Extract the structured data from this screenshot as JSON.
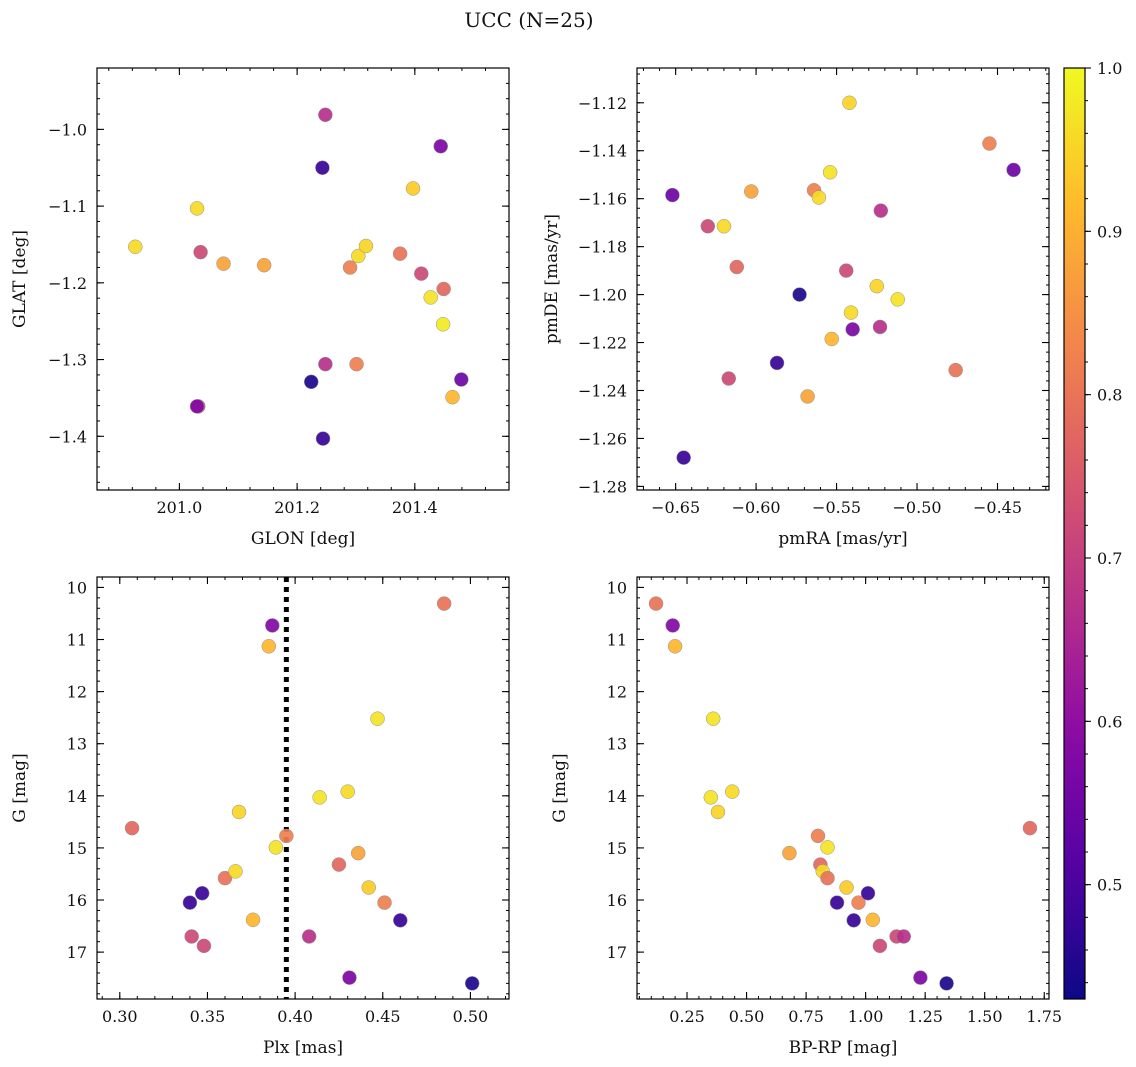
{
  "figure": {
    "suptitle": "UCC (N=25)"
  },
  "colorbar": {
    "range": [
      0.43,
      1.0
    ],
    "ticks": [
      0.5,
      0.6,
      0.7,
      0.8,
      0.9,
      1.0
    ],
    "tick_labels": [
      "0.5",
      "0.6",
      "0.7",
      "0.8",
      "0.9",
      "1.0"
    ],
    "colormap": "plasma"
  },
  "chart_data": [
    {
      "type": "scatter",
      "title": "",
      "xlabel": "GLON [deg]",
      "ylabel": "GLAT [deg]",
      "xlim": [
        200.86,
        201.56
      ],
      "ylim": [
        -1.47,
        -0.92
      ],
      "y_inverted": false,
      "xticks": [
        201.0,
        201.2,
        201.4
      ],
      "xtick_labels": [
        "201.0",
        "201.2",
        "201.4"
      ],
      "yticks": [
        -1.4,
        -1.3,
        -1.2,
        -1.1,
        -1.0
      ],
      "ytick_labels": [
        "−1.4",
        "−1.3",
        "−1.2",
        "−1.1",
        "−1.0"
      ],
      "points": [
        {
          "x": 200.925,
          "y": -1.153,
          "c": 0.96
        },
        {
          "x": 201.03,
          "y": -1.103,
          "c": 0.96
        },
        {
          "x": 201.036,
          "y": -1.16,
          "c": 0.72
        },
        {
          "x": 201.075,
          "y": -1.175,
          "c": 0.88
        },
        {
          "x": 201.144,
          "y": -1.177,
          "c": 0.88
        },
        {
          "x": 201.032,
          "y": -1.361,
          "c": 0.72
        },
        {
          "x": 201.03,
          "y": -1.361,
          "c": 0.58
        },
        {
          "x": 201.248,
          "y": -0.981,
          "c": 0.67
        },
        {
          "x": 201.243,
          "y": -1.05,
          "c": 0.48
        },
        {
          "x": 201.244,
          "y": -1.403,
          "c": 0.48
        },
        {
          "x": 201.224,
          "y": -1.329,
          "c": 0.45
        },
        {
          "x": 201.248,
          "y": -1.306,
          "c": 0.67
        },
        {
          "x": 201.29,
          "y": -1.18,
          "c": 0.82
        },
        {
          "x": 201.301,
          "y": -1.306,
          "c": 0.82
        },
        {
          "x": 201.304,
          "y": -1.165,
          "c": 0.96
        },
        {
          "x": 201.317,
          "y": -1.152,
          "c": 0.95
        },
        {
          "x": 201.375,
          "y": -1.162,
          "c": 0.8
        },
        {
          "x": 201.397,
          "y": -1.077,
          "c": 0.94
        },
        {
          "x": 201.411,
          "y": -1.188,
          "c": 0.72
        },
        {
          "x": 201.427,
          "y": -1.219,
          "c": 0.97
        },
        {
          "x": 201.444,
          "y": -1.022,
          "c": 0.57
        },
        {
          "x": 201.448,
          "y": -1.254,
          "c": 0.98
        },
        {
          "x": 201.449,
          "y": -1.208,
          "c": 0.78
        },
        {
          "x": 201.464,
          "y": -1.349,
          "c": 0.91
        },
        {
          "x": 201.479,
          "y": -1.326,
          "c": 0.55
        }
      ]
    },
    {
      "type": "scatter",
      "title": "",
      "xlabel": "pmRA [mas/yr]",
      "ylabel": "pmDE [mas/yr]",
      "xlim": [
        -0.674,
        -0.418
      ],
      "ylim": [
        -1.2815,
        -1.1055
      ],
      "y_inverted": false,
      "xticks": [
        -0.65,
        -0.6,
        -0.55,
        -0.5,
        -0.45
      ],
      "xtick_labels": [
        "−0.65",
        "−0.60",
        "−0.55",
        "−0.50",
        "−0.45"
      ],
      "yticks": [
        -1.28,
        -1.26,
        -1.24,
        -1.22,
        -1.2,
        -1.18,
        -1.16,
        -1.14,
        -1.12
      ],
      "ytick_labels": [
        "−1.28",
        "−1.26",
        "−1.24",
        "−1.22",
        "−1.20",
        "−1.18",
        "−1.16",
        "−1.14",
        "−1.12"
      ],
      "points": [
        {
          "x": -0.652,
          "y": -1.1585,
          "c": 0.55
        },
        {
          "x": -0.645,
          "y": -1.268,
          "c": 0.48
        },
        {
          "x": -0.63,
          "y": -1.1715,
          "c": 0.72
        },
        {
          "x": -0.62,
          "y": -1.1715,
          "c": 0.96
        },
        {
          "x": -0.617,
          "y": -1.235,
          "c": 0.72
        },
        {
          "x": -0.612,
          "y": -1.1885,
          "c": 0.78
        },
        {
          "x": -0.603,
          "y": -1.157,
          "c": 0.88
        },
        {
          "x": -0.587,
          "y": -1.2285,
          "c": 0.48
        },
        {
          "x": -0.573,
          "y": -1.2,
          "c": 0.45
        },
        {
          "x": -0.568,
          "y": -1.2425,
          "c": 0.88
        },
        {
          "x": -0.564,
          "y": -1.1565,
          "c": 0.82
        },
        {
          "x": -0.561,
          "y": -1.1595,
          "c": 0.96
        },
        {
          "x": -0.554,
          "y": -1.149,
          "c": 0.97
        },
        {
          "x": -0.553,
          "y": -1.2185,
          "c": 0.91
        },
        {
          "x": -0.544,
          "y": -1.19,
          "c": 0.72
        },
        {
          "x": -0.542,
          "y": -1.12,
          "c": 0.95
        },
        {
          "x": -0.541,
          "y": -1.2075,
          "c": 0.96
        },
        {
          "x": -0.54,
          "y": -1.2145,
          "c": 0.57
        },
        {
          "x": -0.525,
          "y": -1.1965,
          "c": 0.95
        },
        {
          "x": -0.523,
          "y": -1.2135,
          "c": 0.67
        },
        {
          "x": -0.5225,
          "y": -1.165,
          "c": 0.67
        },
        {
          "x": -0.512,
          "y": -1.202,
          "c": 0.97
        },
        {
          "x": -0.476,
          "y": -1.2315,
          "c": 0.8
        },
        {
          "x": -0.455,
          "y": -1.137,
          "c": 0.82
        },
        {
          "x": -0.44,
          "y": -1.148,
          "c": 0.55
        }
      ]
    },
    {
      "type": "scatter",
      "title": "",
      "xlabel": "Plx [mas]",
      "ylabel": "G [mag]",
      "xlim": [
        0.287,
        0.522
      ],
      "ylim": [
        9.8,
        17.9
      ],
      "y_inverted": true,
      "vline": 0.395,
      "xticks": [
        0.3,
        0.35,
        0.4,
        0.45,
        0.5
      ],
      "xtick_labels": [
        "0.30",
        "0.35",
        "0.40",
        "0.45",
        "0.50"
      ],
      "yticks": [
        10,
        11,
        12,
        13,
        14,
        15,
        16,
        17
      ],
      "ytick_labels": [
        "10",
        "11",
        "12",
        "13",
        "14",
        "15",
        "16",
        "17"
      ],
      "points": [
        {
          "x": 0.307,
          "y": 14.62,
          "c": 0.78
        },
        {
          "x": 0.34,
          "y": 16.05,
          "c": 0.48
        },
        {
          "x": 0.341,
          "y": 16.7,
          "c": 0.72
        },
        {
          "x": 0.347,
          "y": 15.87,
          "c": 0.48
        },
        {
          "x": 0.348,
          "y": 16.88,
          "c": 0.72
        },
        {
          "x": 0.36,
          "y": 15.58,
          "c": 0.8
        },
        {
          "x": 0.366,
          "y": 15.45,
          "c": 0.96
        },
        {
          "x": 0.368,
          "y": 14.31,
          "c": 0.95
        },
        {
          "x": 0.376,
          "y": 16.38,
          "c": 0.91
        },
        {
          "x": 0.385,
          "y": 11.13,
          "c": 0.91
        },
        {
          "x": 0.387,
          "y": 10.73,
          "c": 0.58
        },
        {
          "x": 0.389,
          "y": 14.99,
          "c": 0.97
        },
        {
          "x": 0.395,
          "y": 14.77,
          "c": 0.82
        },
        {
          "x": 0.408,
          "y": 16.7,
          "c": 0.67
        },
        {
          "x": 0.414,
          "y": 14.03,
          "c": 0.97
        },
        {
          "x": 0.425,
          "y": 15.32,
          "c": 0.78
        },
        {
          "x": 0.43,
          "y": 13.92,
          "c": 0.96
        },
        {
          "x": 0.431,
          "y": 17.49,
          "c": 0.57
        },
        {
          "x": 0.436,
          "y": 15.1,
          "c": 0.88
        },
        {
          "x": 0.442,
          "y": 15.76,
          "c": 0.94
        },
        {
          "x": 0.447,
          "y": 12.52,
          "c": 0.97
        },
        {
          "x": 0.451,
          "y": 16.05,
          "c": 0.82
        },
        {
          "x": 0.46,
          "y": 16.39,
          "c": 0.48
        },
        {
          "x": 0.485,
          "y": 10.31,
          "c": 0.8
        },
        {
          "x": 0.501,
          "y": 17.6,
          "c": 0.45
        }
      ]
    },
    {
      "type": "scatter",
      "title": "",
      "xlabel": "BP-RP [mag]",
      "ylabel": "G [mag]",
      "xlim": [
        0.04,
        1.77
      ],
      "ylim": [
        9.8,
        17.9
      ],
      "y_inverted": true,
      "xticks": [
        0.25,
        0.5,
        0.75,
        1.0,
        1.25,
        1.5,
        1.75
      ],
      "xtick_labels": [
        "0.25",
        "0.50",
        "0.75",
        "1.00",
        "1.25",
        "1.50",
        "1.75"
      ],
      "yticks": [
        10,
        11,
        12,
        13,
        14,
        15,
        16,
        17
      ],
      "ytick_labels": [
        "10",
        "11",
        "12",
        "13",
        "14",
        "15",
        "16",
        "17"
      ],
      "points": [
        {
          "x": 0.12,
          "y": 10.31,
          "c": 0.8
        },
        {
          "x": 0.19,
          "y": 10.73,
          "c": 0.58
        },
        {
          "x": 0.2,
          "y": 11.13,
          "c": 0.91
        },
        {
          "x": 0.36,
          "y": 12.52,
          "c": 0.97
        },
        {
          "x": 0.35,
          "y": 14.03,
          "c": 0.97
        },
        {
          "x": 0.38,
          "y": 14.31,
          "c": 0.95
        },
        {
          "x": 0.44,
          "y": 13.92,
          "c": 0.96
        },
        {
          "x": 0.68,
          "y": 15.1,
          "c": 0.88
        },
        {
          "x": 0.8,
          "y": 14.77,
          "c": 0.82
        },
        {
          "x": 0.81,
          "y": 15.32,
          "c": 0.78
        },
        {
          "x": 0.82,
          "y": 15.45,
          "c": 0.96
        },
        {
          "x": 0.84,
          "y": 14.99,
          "c": 0.97
        },
        {
          "x": 0.84,
          "y": 15.58,
          "c": 0.8
        },
        {
          "x": 0.88,
          "y": 16.05,
          "c": 0.48
        },
        {
          "x": 0.92,
          "y": 15.76,
          "c": 0.94
        },
        {
          "x": 0.95,
          "y": 16.39,
          "c": 0.48
        },
        {
          "x": 0.97,
          "y": 16.05,
          "c": 0.82
        },
        {
          "x": 1.01,
          "y": 15.87,
          "c": 0.48
        },
        {
          "x": 1.03,
          "y": 16.38,
          "c": 0.91
        },
        {
          "x": 1.06,
          "y": 16.88,
          "c": 0.72
        },
        {
          "x": 1.13,
          "y": 16.7,
          "c": 0.72
        },
        {
          "x": 1.16,
          "y": 16.7,
          "c": 0.67
        },
        {
          "x": 1.23,
          "y": 17.49,
          "c": 0.57
        },
        {
          "x": 1.34,
          "y": 17.6,
          "c": 0.45
        },
        {
          "x": 1.69,
          "y": 14.62,
          "c": 0.78
        }
      ]
    }
  ]
}
